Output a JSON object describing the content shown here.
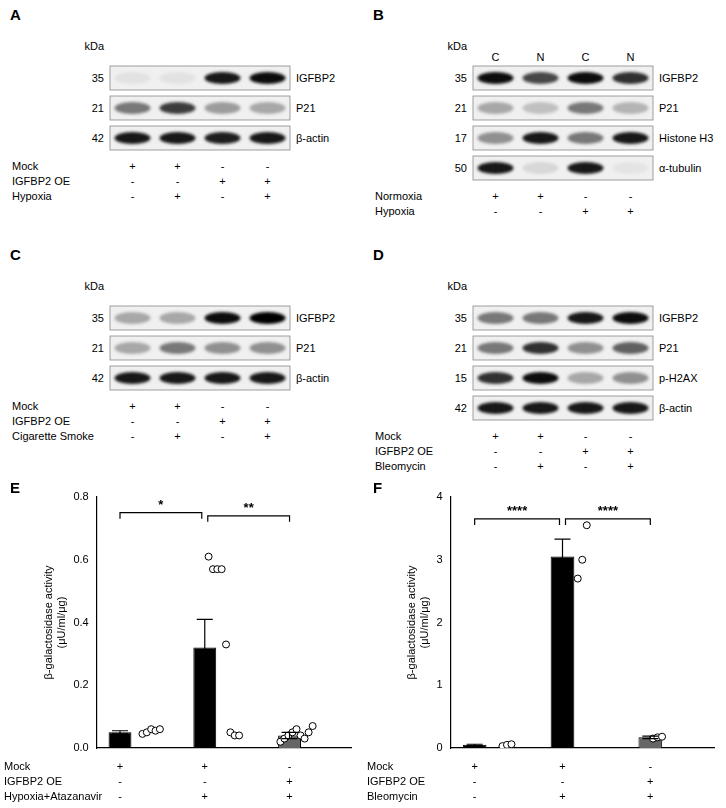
{
  "blots": [
    {
      "panel": "A",
      "unit": "kDa",
      "rows": [
        {
          "marker": 35,
          "protein": "IGFBP2",
          "intensity": [
            0.06,
            0.06,
            0.9,
            0.95
          ]
        },
        {
          "marker": 21,
          "protein": "P21",
          "intensity": [
            0.5,
            0.75,
            0.35,
            0.3
          ]
        },
        {
          "marker": 42,
          "protein": "β-actin",
          "intensity": [
            0.9,
            0.9,
            0.88,
            0.9
          ]
        }
      ],
      "conditions": [
        {
          "name": "Mock",
          "signs": [
            "+",
            "+",
            "-",
            "-"
          ]
        },
        {
          "name": "IGFBP2 OE",
          "signs": [
            "-",
            "-",
            "+",
            "+"
          ]
        },
        {
          "name": "Hypoxia",
          "signs": [
            "-",
            "+",
            "-",
            "+"
          ]
        }
      ]
    },
    {
      "panel": "B",
      "unit": "kDa",
      "lane_headers": [
        "C",
        "N",
        "C",
        "N"
      ],
      "rows": [
        {
          "marker": 35,
          "protein": "IGFBP2",
          "intensity": [
            0.95,
            0.7,
            0.95,
            0.8
          ]
        },
        {
          "marker": 21,
          "protein": "P21",
          "intensity": [
            0.3,
            0.2,
            0.5,
            0.25
          ]
        },
        {
          "marker": 17,
          "protein": "Histone H3",
          "intensity": [
            0.4,
            0.9,
            0.5,
            0.9
          ]
        },
        {
          "marker": 50,
          "protein": "α-tubulin",
          "intensity": [
            0.9,
            0.1,
            0.9,
            0.05
          ]
        }
      ],
      "conditions": [
        {
          "name": "Normoxia",
          "signs": [
            "+",
            "+",
            "-",
            "-"
          ]
        },
        {
          "name": "Hypoxia",
          "signs": [
            "-",
            "-",
            "+",
            "+"
          ]
        }
      ]
    },
    {
      "panel": "C",
      "unit": "kDa",
      "rows": [
        {
          "marker": 35,
          "protein": "IGFBP2",
          "intensity": [
            0.3,
            0.3,
            0.95,
            1.0
          ]
        },
        {
          "marker": 21,
          "protein": "P21",
          "intensity": [
            0.3,
            0.5,
            0.4,
            0.4
          ]
        },
        {
          "marker": 42,
          "protein": "β-actin",
          "intensity": [
            0.9,
            0.9,
            0.9,
            0.9
          ]
        }
      ],
      "conditions": [
        {
          "name": "Mock",
          "signs": [
            "+",
            "+",
            "-",
            "-"
          ]
        },
        {
          "name": "IGFBP2 OE",
          "signs": [
            "-",
            "-",
            "+",
            "+"
          ]
        },
        {
          "name": "Cigarette Smoke",
          "signs": [
            "-",
            "+",
            "-",
            "+"
          ]
        }
      ]
    },
    {
      "panel": "D",
      "unit": "kDa",
      "rows": [
        {
          "marker": 35,
          "protein": "IGFBP2",
          "intensity": [
            0.5,
            0.5,
            0.9,
            0.95
          ]
        },
        {
          "marker": 21,
          "protein": "P21",
          "intensity": [
            0.5,
            0.8,
            0.4,
            0.6
          ]
        },
        {
          "marker": 15,
          "protein": "p-H2AX",
          "intensity": [
            0.8,
            0.95,
            0.3,
            0.4
          ]
        },
        {
          "marker": 42,
          "protein": "β-actin",
          "intensity": [
            0.9,
            0.9,
            0.9,
            0.9
          ]
        }
      ],
      "conditions": [
        {
          "name": "Mock",
          "signs": [
            "+",
            "+",
            "-",
            "-"
          ]
        },
        {
          "name": "IGFBP2 OE",
          "signs": [
            "-",
            "-",
            "+",
            "+"
          ]
        },
        {
          "name": "Bleomycin",
          "signs": [
            "-",
            "+",
            "-",
            "+"
          ]
        }
      ]
    }
  ],
  "chart_data": [
    {
      "panel": "E",
      "type": "bar",
      "categories": [
        null,
        null,
        null
      ],
      "values": [
        0.05,
        0.32,
        0.04
      ],
      "errors": [
        0.005,
        0.09,
        0.01
      ],
      "points": [
        [
          0.045,
          0.05,
          0.06,
          0.055,
          0.06
        ],
        [
          0.61,
          0.57,
          0.57,
          0.57,
          0.33,
          0.05,
          0.04,
          0.04
        ],
        [
          0.02,
          0.03,
          0.04,
          0.05,
          0.06,
          0.04,
          0.03,
          0.05,
          0.07
        ]
      ],
      "colors": [
        "#000000",
        "#000000",
        "#666666"
      ],
      "y_label": [
        "β-galactosidase activity",
        "(μU/ml/μg)"
      ],
      "ylim": [
        0,
        0.8
      ],
      "yticks": [
        {
          "value": 0,
          "label": "0.0"
        },
        {
          "value": 0.2,
          "label": "0.2"
        },
        {
          "value": 0.4,
          "label": "0.4"
        },
        {
          "value": 0.6,
          "label": "0.6"
        },
        {
          "value": 0.8,
          "label": "0.8"
        }
      ],
      "grid": false,
      "tick_labels": "y",
      "annotations": [
        {
          "from": 0,
          "to": 1,
          "label": "*",
          "y": 0.75
        },
        {
          "from": 1,
          "to": 2,
          "label": "**",
          "y": 0.74
        }
      ],
      "conditions": [
        {
          "name": "Mock",
          "signs": [
            "+",
            "+",
            "-"
          ]
        },
        {
          "name": "IGFBP2 OE",
          "signs": [
            "-",
            "-",
            "+"
          ]
        },
        {
          "name": "Hypoxia+Atazanavir",
          "signs": [
            "-",
            "+",
            "+"
          ]
        }
      ]
    },
    {
      "panel": "F",
      "type": "bar",
      "categories": [
        null,
        null,
        null
      ],
      "values": [
        0.05,
        3.05,
        0.17
      ],
      "errors": [
        0.01,
        0.28,
        0.02
      ],
      "points": [
        [
          0.03,
          0.05,
          0.06
        ],
        [
          2.7,
          3.0,
          3.55
        ],
        [
          0.15,
          0.17,
          0.18
        ]
      ],
      "colors": [
        "#000000",
        "#000000",
        "#666666"
      ],
      "y_label": [
        "β-galactosidase activity",
        "(μU/ml/μg)"
      ],
      "ylim": [
        0,
        4
      ],
      "yticks": [
        0,
        1,
        2,
        3,
        4
      ],
      "grid": false,
      "tick_labels": "y",
      "annotations": [
        {
          "from": 0,
          "to": 1,
          "label": "****",
          "y": 3.65
        },
        {
          "from": 1,
          "to": 2,
          "label": "****",
          "y": 3.65
        }
      ],
      "conditions": [
        {
          "name": "Mock",
          "signs": [
            "+",
            "+",
            "-"
          ]
        },
        {
          "name": "IGFBP2 OE",
          "signs": [
            "-",
            "-",
            "+"
          ]
        },
        {
          "name": "Bleomycin",
          "signs": [
            "-",
            "+",
            "+"
          ]
        }
      ]
    }
  ]
}
